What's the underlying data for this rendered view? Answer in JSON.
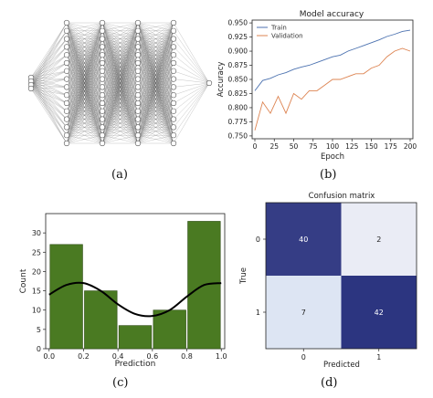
{
  "captions": {
    "a": "(a)",
    "b": "(b)",
    "c": "(c)",
    "d": "(d)"
  },
  "chart_data": [
    {
      "type": "diagram",
      "panel": "(a)",
      "layers": [
        4,
        16,
        16,
        16,
        16,
        1
      ]
    },
    {
      "type": "line",
      "panel": "(b)",
      "title": "Model accuracy",
      "xlabel": "Epoch",
      "ylabel": "Accuracy",
      "xlim": [
        0,
        200
      ],
      "ylim": [
        0.745,
        0.955
      ],
      "xticks": [
        0,
        25,
        50,
        75,
        100,
        125,
        150,
        175,
        200
      ],
      "yticks": [
        0.75,
        0.775,
        0.8,
        0.825,
        0.85,
        0.875,
        0.9,
        0.925,
        0.95
      ],
      "xtick_labels": [
        "0",
        "25",
        "50",
        "75",
        "100",
        "125",
        "150",
        "175",
        "200"
      ],
      "ytick_labels": [
        "0.750",
        "0.775",
        "0.800",
        "0.825",
        "0.850",
        "0.875",
        "0.900",
        "0.925",
        "0.950"
      ],
      "legend": "upper-left",
      "x": [
        0,
        10,
        20,
        30,
        40,
        50,
        60,
        70,
        80,
        90,
        100,
        110,
        120,
        130,
        140,
        150,
        160,
        170,
        180,
        190,
        200
      ],
      "series": [
        {
          "name": "Train",
          "color": "#4c72b0",
          "values": [
            0.83,
            0.848,
            0.852,
            0.858,
            0.862,
            0.868,
            0.872,
            0.875,
            0.88,
            0.885,
            0.89,
            0.893,
            0.9,
            0.905,
            0.91,
            0.915,
            0.92,
            0.926,
            0.93,
            0.935,
            0.937
          ]
        },
        {
          "name": "Validation",
          "color": "#dd8452",
          "values": [
            0.76,
            0.81,
            0.79,
            0.82,
            0.79,
            0.825,
            0.815,
            0.83,
            0.83,
            0.84,
            0.85,
            0.85,
            0.855,
            0.86,
            0.86,
            0.87,
            0.875,
            0.89,
            0.9,
            0.905,
            0.9
          ]
        }
      ]
    },
    {
      "type": "bar",
      "panel": "(c)",
      "xlabel": "Prediction",
      "ylabel": "Count",
      "xlim": [
        -0.02,
        1.02
      ],
      "ylim": [
        0,
        35
      ],
      "xticks": [
        0.0,
        0.2,
        0.4,
        0.6,
        0.8,
        1.0
      ],
      "xtick_labels": [
        "0.0",
        "0.2",
        "0.4",
        "0.6",
        "0.8",
        "1.0"
      ],
      "yticks": [
        0,
        5,
        10,
        15,
        20,
        25,
        30
      ],
      "ytick_labels": [
        "0",
        "5",
        "10",
        "15",
        "20",
        "25",
        "30"
      ],
      "bins": [
        [
          0.0,
          0.2
        ],
        [
          0.2,
          0.4
        ],
        [
          0.4,
          0.6
        ],
        [
          0.6,
          0.8
        ],
        [
          0.8,
          1.0
        ]
      ],
      "values": [
        27,
        15,
        6,
        10,
        33
      ],
      "bar_color": "#4a7a22",
      "kde": {
        "x": [
          0.0,
          0.1,
          0.2,
          0.3,
          0.4,
          0.5,
          0.6,
          0.7,
          0.8,
          0.9,
          1.0
        ],
        "y": [
          14,
          16.5,
          17,
          15,
          11.5,
          9,
          8.5,
          10,
          13.5,
          16.5,
          17
        ]
      }
    },
    {
      "type": "heatmap",
      "panel": "(d)",
      "title": "Confusion matrix",
      "xlabel": "Predicted",
      "ylabel": "True",
      "x_categories": [
        "0",
        "1"
      ],
      "y_categories": [
        "0",
        "1"
      ],
      "matrix": [
        [
          40,
          2
        ],
        [
          7,
          42
        ]
      ],
      "colors": {
        "max": "#2c3580",
        "min": "#f7f9fd",
        "light": "#dde5f3"
      }
    }
  ]
}
